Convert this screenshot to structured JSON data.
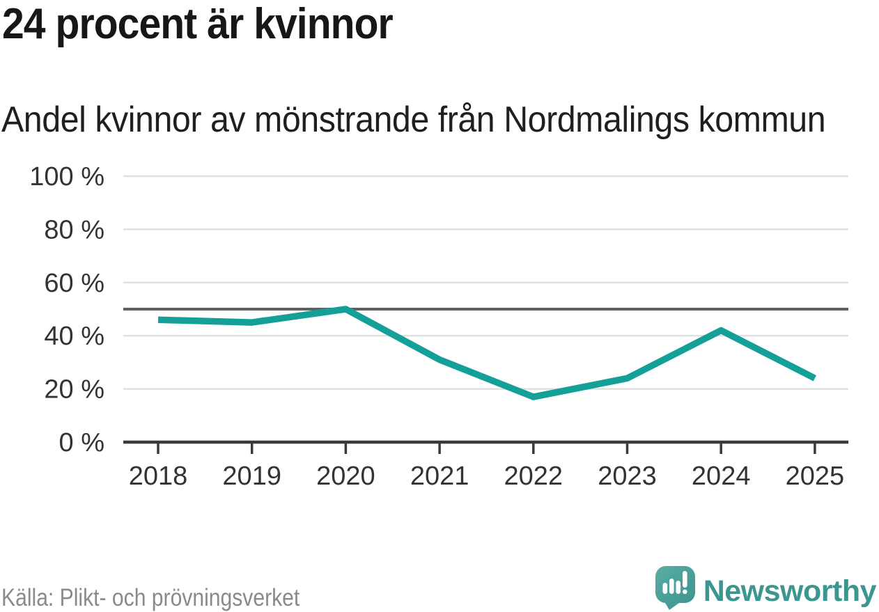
{
  "header": {
    "title": "24 procent är kvinnor",
    "subtitle": "Andel kvinnor av mönstrande från Nordmalings kommun"
  },
  "chart_data": {
    "type": "line",
    "title": "24 procent är kvinnor",
    "subtitle": "Andel kvinnor av mönstrande från Nordmalings kommun",
    "x": [
      "2018",
      "2019",
      "2020",
      "2021",
      "2022",
      "2023",
      "2024",
      "2025"
    ],
    "series": [
      {
        "name": "Andel kvinnor av mönstrande",
        "values": [
          46,
          45,
          50,
          31,
          17,
          24,
          42,
          24
        ]
      }
    ],
    "unit": "%",
    "ylim": [
      0,
      100
    ],
    "yticks": [
      0,
      20,
      40,
      60,
      80,
      100
    ],
    "ytick_suffix": " %",
    "reference_line": 50,
    "grid": true,
    "legend": "none",
    "colors": {
      "line": "#14A099",
      "grid": "#E0E0E0",
      "reference": "#606060",
      "axis": "#3A3A3A",
      "tick_label": "#333333"
    }
  },
  "footer": {
    "source": "Källa: Plikt- och prövningsverket",
    "logo_text": "Newsworthy",
    "logo_icon": "speech-bubble-bar-chart-exclamation",
    "logo_colors": {
      "bubble_top": "#58AEA5",
      "bubble_bottom": "#3C938C",
      "marks": "#FFFFFF",
      "text": "#3B968F"
    }
  }
}
